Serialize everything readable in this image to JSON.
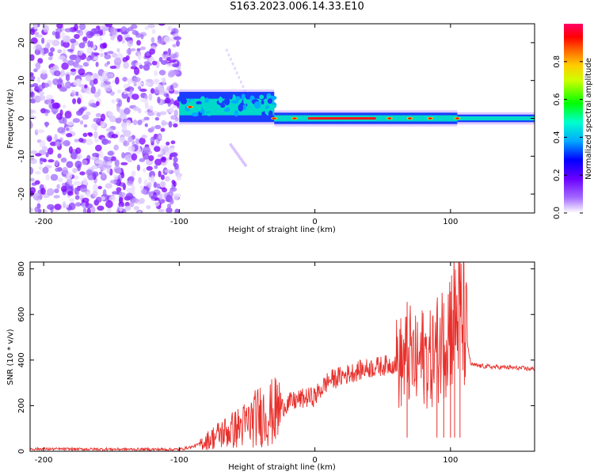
{
  "title": "S163.2023.006.14.33.E10",
  "colors": {
    "snr_line": "#e8302c",
    "spectrogram_main": "#7b00ff"
  },
  "chart_data": [
    {
      "type": "heatmap",
      "name": "spectrogram",
      "xlabel": "Height of straight line (km)",
      "ylabel": "Frequency (Hz)",
      "xlim": [
        -210,
        162
      ],
      "ylim": [
        -25,
        25
      ],
      "xticks": [
        "-200",
        "-100",
        "0",
        "100"
      ],
      "xtick_values": [
        -200,
        -100,
        0,
        100
      ],
      "yticks": [
        "20",
        "10",
        "0",
        "-10",
        "-20"
      ],
      "ytick_values": [
        20,
        10,
        0,
        -10,
        -20
      ],
      "colorbar": {
        "label": "Normalized spectral amplitude",
        "ticks": [
          "0.0",
          "0.2",
          "0.4",
          "0.6",
          "0.8"
        ],
        "tick_values": [
          0.0,
          0.2,
          0.4,
          0.6,
          0.8
        ],
        "range": [
          0,
          1
        ]
      },
      "segments": [
        {
          "x": [
            -210,
            -100
          ],
          "description_type": "noise",
          "frequency_range": [
            -25,
            25
          ]
        },
        {
          "x": [
            -100,
            -30
          ],
          "description_type": "signal",
          "frequency_center": 3,
          "frequency_spread": 4
        },
        {
          "x": [
            -30,
            105
          ],
          "description_type": "signal",
          "frequency_center": 0,
          "frequency_spread": 1.5
        },
        {
          "x": [
            105,
            162
          ],
          "description_type": "signal",
          "frequency_center": 0,
          "frequency_spread": 1
        }
      ]
    },
    {
      "type": "line",
      "name": "snr",
      "xlabel": "Height of straight line (km)",
      "ylabel": "SNR (10 * v/v)",
      "xlim": [
        -210,
        162
      ],
      "ylim": [
        0,
        830
      ],
      "xticks": [
        "-200",
        "-100",
        "0",
        "100"
      ],
      "xtick_values": [
        -200,
        -100,
        0,
        100
      ],
      "yticks": [
        "800",
        "600",
        "400",
        "200",
        "0"
      ],
      "ytick_values": [
        800,
        600,
        400,
        200,
        0
      ],
      "series": [
        {
          "x": [
            -210,
            -100,
            -90,
            -80,
            -70,
            -60,
            -50,
            -40,
            -30,
            -20,
            -10,
            0,
            10,
            20,
            30,
            40,
            50,
            60,
            65,
            70,
            75,
            80,
            85,
            90,
            95,
            100,
            105,
            110,
            115,
            120,
            130,
            140,
            150,
            162
          ],
          "values": [
            10,
            8,
            20,
            45,
            75,
            95,
            120,
            160,
            170,
            210,
            230,
            240,
            310,
            330,
            350,
            365,
            375,
            385,
            390,
            420,
            380,
            420,
            400,
            450,
            500,
            560,
            600,
            560,
            380,
            375,
            370,
            368,
            365,
            360
          ]
        }
      ],
      "peaks": [
        {
          "x": 68,
          "y": 655
        },
        {
          "x": 90,
          "y": 600
        },
        {
          "x": 95,
          "y": 650
        },
        {
          "x": 100,
          "y": 700
        },
        {
          "x": 103,
          "y": 720
        },
        {
          "x": 107,
          "y": 830
        }
      ]
    }
  ]
}
